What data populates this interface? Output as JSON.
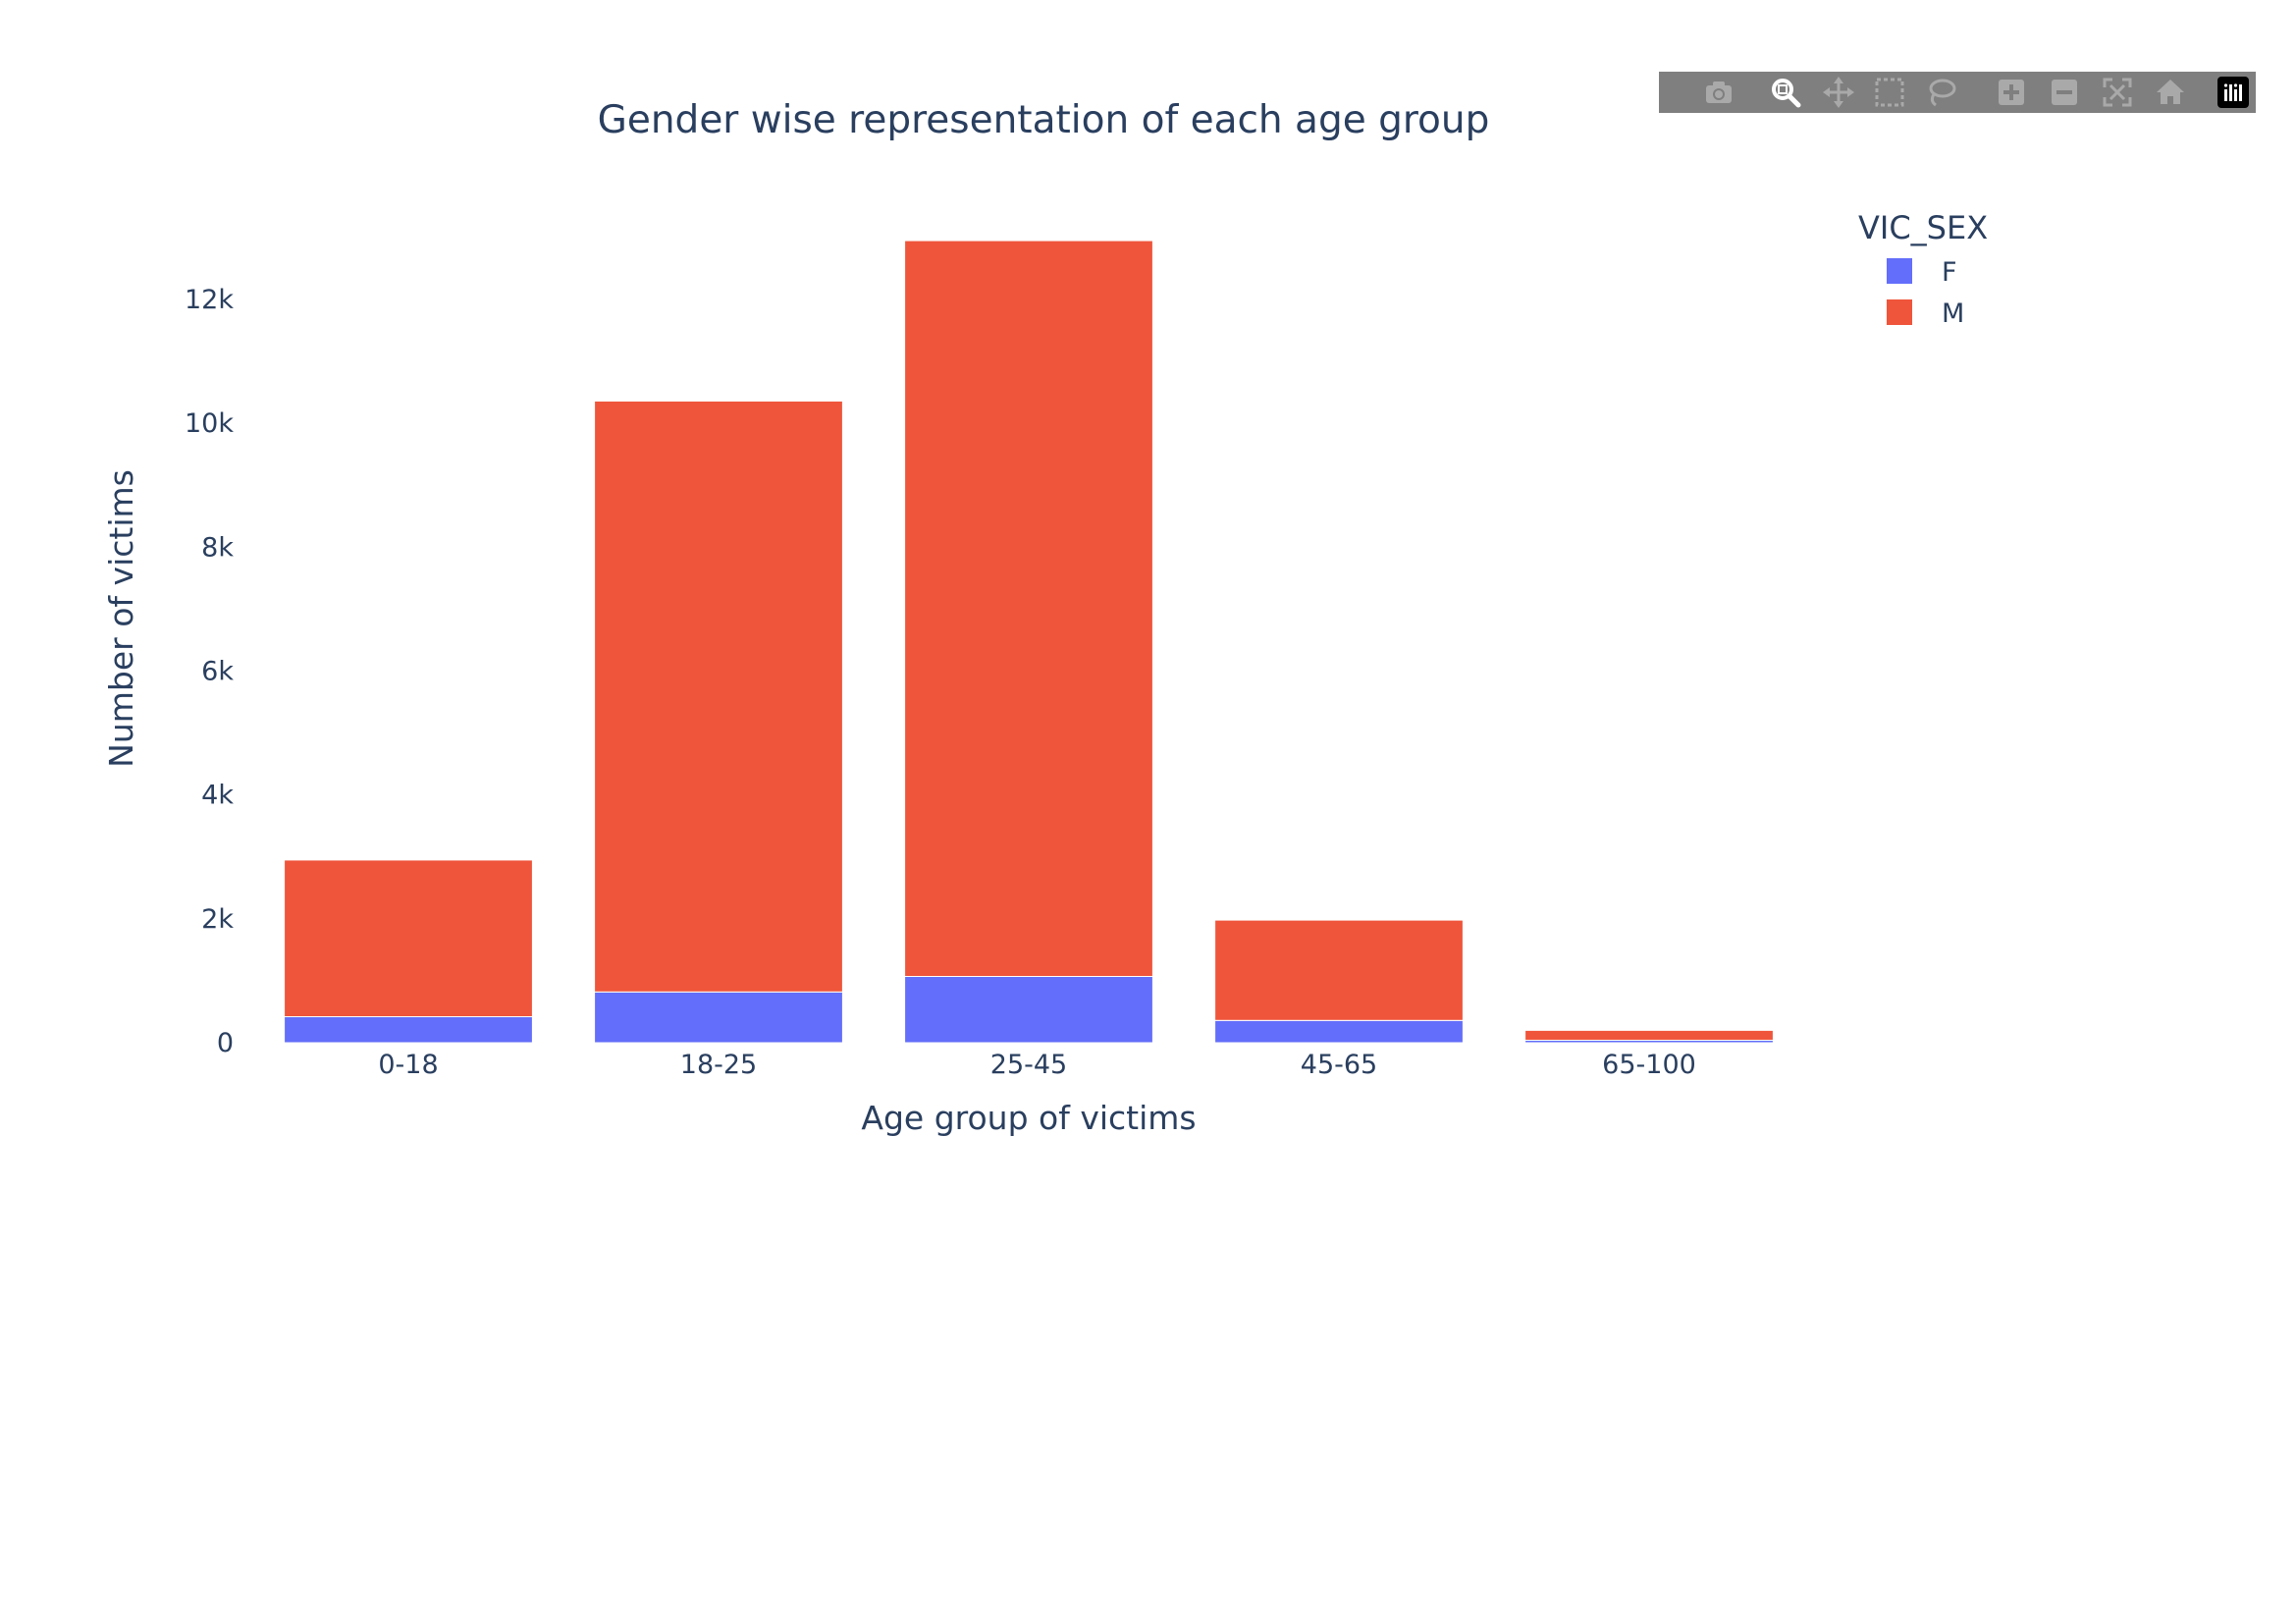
{
  "chart_data": {
    "type": "bar",
    "barmode": "stack",
    "title": "Gender wise representation of each age group",
    "xlabel": "Age group of victims",
    "ylabel": "Number of victims",
    "categories": [
      "0-18",
      "18-25",
      "25-45",
      "45-65",
      "65-100"
    ],
    "series": [
      {
        "name": "F",
        "color": "#636efa",
        "values": [
          420,
          820,
          1070,
          360,
          40
        ]
      },
      {
        "name": "M",
        "color": "#ef553b",
        "values": [
          2530,
          9540,
          11880,
          1620,
          160
        ]
      }
    ],
    "ylim": [
      0,
      13000
    ],
    "yticks": [
      0,
      2000,
      4000,
      6000,
      8000,
      10000,
      12000
    ],
    "ytick_labels": [
      "0",
      "2k",
      "4k",
      "6k",
      "8k",
      "10k",
      "12k"
    ],
    "grid": false,
    "legend": {
      "title": "VIC_SEX",
      "placement": "top-right"
    }
  },
  "modebar": {
    "icons": [
      "camera-icon",
      "zoom-icon",
      "pan-icon",
      "box-select-icon",
      "lasso-icon",
      "zoom-in-icon",
      "zoom-out-icon",
      "autoscale-icon",
      "reset-axes-icon",
      "plotly-logo-icon"
    ]
  }
}
